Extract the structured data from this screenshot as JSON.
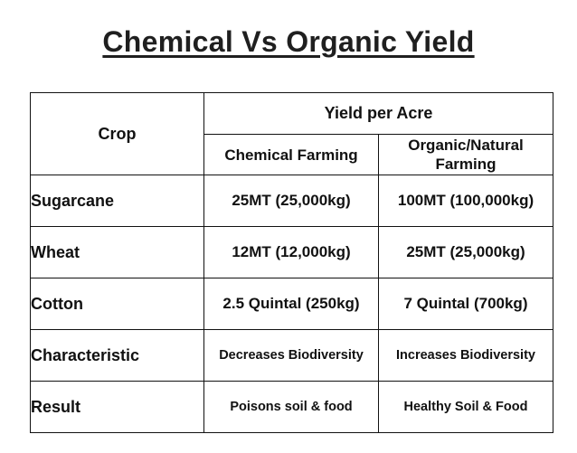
{
  "title": "Chemical Vs Organic Yield",
  "table": {
    "header": {
      "crop": "Crop",
      "group": "Yield per Acre",
      "chemical": "Chemical Farming",
      "organic_line1": "Organic/Natural",
      "organic_line2": "Farming"
    },
    "rows": [
      {
        "crop": "Sugarcane",
        "chemical": "25MT (25,000kg)",
        "organic": "100MT (100,000kg)"
      },
      {
        "crop": "Wheat",
        "chemical": "12MT (12,000kg)",
        "organic": "25MT (25,000kg)"
      },
      {
        "crop": "Cotton",
        "chemical": "2.5 Quintal (250kg)",
        "organic": "7 Quintal (700kg)"
      },
      {
        "crop": "Characteristic",
        "chemical": "Decreases Biodiversity",
        "organic": "Increases Biodiversity"
      },
      {
        "crop": "Result",
        "chemical": "Poisons soil & food",
        "organic": "Healthy Soil & Food"
      }
    ]
  }
}
